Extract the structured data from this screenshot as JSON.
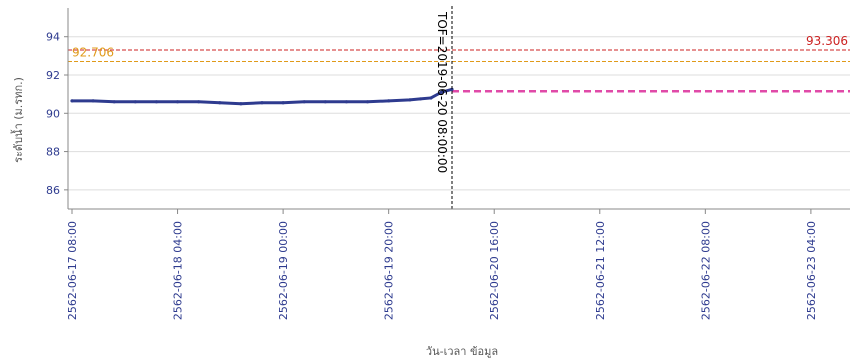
{
  "chart_data": {
    "type": "line",
    "xlabel": "วัน-เวลา ข้อมูล",
    "ylabel": "ระดับน้ำ (ม.รทก.)",
    "ylim": [
      85,
      95.5
    ],
    "yticks": [
      86,
      88,
      90,
      92,
      94
    ],
    "xlim": [
      "2562-06-17 08:00",
      "2562-06-23 08:00"
    ],
    "xticks": [
      "2562-06-17 08:00",
      "2562-06-18 04:00",
      "2562-06-19 00:00",
      "2562-06-19 20:00",
      "2562-06-20 16:00",
      "2562-06-21 12:00",
      "2562-06-22 08:00",
      "2562-06-23 04:00"
    ],
    "grid": true,
    "series": [
      {
        "color": "#2e3b8f",
        "x": [
          "2562-06-17 08:00",
          "2562-06-17 12:00",
          "2562-06-17 16:00",
          "2562-06-17 20:00",
          "2562-06-18 00:00",
          "2562-06-18 04:00",
          "2562-06-18 08:00",
          "2562-06-18 12:00",
          "2562-06-18 16:00",
          "2562-06-18 20:00",
          "2562-06-19 00:00",
          "2562-06-19 04:00",
          "2562-06-19 08:00",
          "2562-06-19 12:00",
          "2562-06-19 16:00",
          "2562-06-19 20:00",
          "2562-06-20 00:00",
          "2562-06-20 02:00",
          "2562-06-20 04:00",
          "2562-06-20 06:00",
          "2562-06-20 08:00"
        ],
        "y": [
          90.65,
          90.65,
          90.6,
          90.6,
          90.6,
          90.6,
          90.6,
          90.55,
          90.5,
          90.55,
          90.55,
          90.6,
          90.6,
          90.6,
          90.6,
          90.65,
          90.7,
          90.75,
          90.8,
          91.1,
          91.25
        ]
      }
    ],
    "reference_lines": [
      {
        "label": "93.306",
        "value": 93.306,
        "color": "#cc2222",
        "style": "dashed"
      },
      {
        "label": "92.706",
        "value": 92.706,
        "color": "#e09a1a",
        "style": "dashed"
      },
      {
        "value": 91.15,
        "color": "#e04aa8",
        "style": "dashed",
        "from": "2562-06-20 08:00"
      }
    ],
    "marker": {
      "label": "TOF=2019-06-20 08:00:00",
      "x": "2562-06-20 08:00",
      "color": "#000000"
    }
  }
}
